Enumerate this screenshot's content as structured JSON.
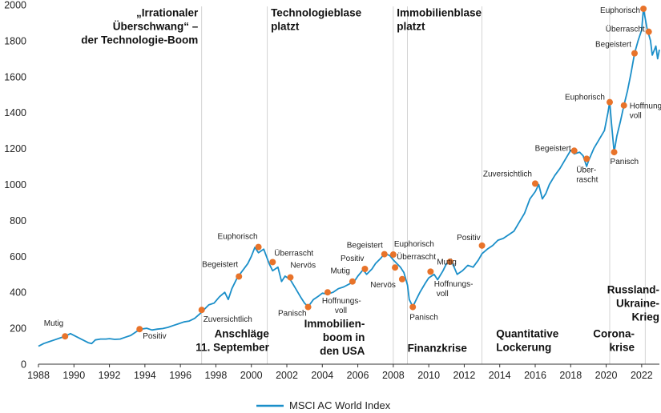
{
  "chart_data": {
    "type": "line",
    "xlim": [
      1988,
      2023
    ],
    "ylim": [
      0,
      2000
    ],
    "x_ticks": [
      1988,
      1990,
      1992,
      1994,
      1996,
      1998,
      2000,
      2002,
      2004,
      2006,
      2008,
      2010,
      2012,
      2014,
      2016,
      2018,
      2020,
      2022
    ],
    "y_ticks": [
      0,
      200,
      400,
      600,
      800,
      1000,
      1200,
      1400,
      1600,
      1800,
      2000
    ],
    "series": [
      {
        "name": "MSCI AC World Index",
        "color": "#1b8fc9",
        "points": [
          [
            1988.0,
            100
          ],
          [
            1988.3,
            115
          ],
          [
            1988.6,
            125
          ],
          [
            1988.9,
            135
          ],
          [
            1989.2,
            145
          ],
          [
            1989.5,
            155
          ],
          [
            1989.8,
            170
          ],
          [
            1990.0,
            160
          ],
          [
            1990.2,
            150
          ],
          [
            1990.4,
            140
          ],
          [
            1990.6,
            130
          ],
          [
            1990.8,
            120
          ],
          [
            1991.0,
            115
          ],
          [
            1991.2,
            135
          ],
          [
            1991.5,
            140
          ],
          [
            1991.8,
            140
          ],
          [
            1992.0,
            142
          ],
          [
            1992.3,
            138
          ],
          [
            1992.6,
            140
          ],
          [
            1992.9,
            150
          ],
          [
            1993.2,
            160
          ],
          [
            1993.5,
            180
          ],
          [
            1993.8,
            195
          ],
          [
            1994.1,
            200
          ],
          [
            1994.4,
            190
          ],
          [
            1994.7,
            195
          ],
          [
            1995.0,
            198
          ],
          [
            1995.3,
            205
          ],
          [
            1995.6,
            215
          ],
          [
            1995.9,
            225
          ],
          [
            1996.2,
            235
          ],
          [
            1996.5,
            240
          ],
          [
            1996.8,
            255
          ],
          [
            1997.1,
            280
          ],
          [
            1997.3,
            300
          ],
          [
            1997.6,
            330
          ],
          [
            1997.9,
            340
          ],
          [
            1998.2,
            375
          ],
          [
            1998.5,
            400
          ],
          [
            1998.7,
            360
          ],
          [
            1998.9,
            420
          ],
          [
            1999.2,
            480
          ],
          [
            1999.5,
            520
          ],
          [
            1999.8,
            560
          ],
          [
            2000.0,
            600
          ],
          [
            2000.2,
            650
          ],
          [
            2000.4,
            620
          ],
          [
            2000.7,
            640
          ],
          [
            2001.0,
            560
          ],
          [
            2001.2,
            520
          ],
          [
            2001.5,
            540
          ],
          [
            2001.7,
            460
          ],
          [
            2001.9,
            490
          ],
          [
            2002.2,
            470
          ],
          [
            2002.5,
            420
          ],
          [
            2002.8,
            370
          ],
          [
            2003.0,
            340
          ],
          [
            2003.2,
            320
          ],
          [
            2003.5,
            360
          ],
          [
            2003.8,
            380
          ],
          [
            2004.0,
            395
          ],
          [
            2004.3,
            390
          ],
          [
            2004.6,
            400
          ],
          [
            2004.9,
            420
          ],
          [
            2005.2,
            430
          ],
          [
            2005.5,
            445
          ],
          [
            2005.8,
            460
          ],
          [
            2006.0,
            490
          ],
          [
            2006.3,
            525
          ],
          [
            2006.5,
            500
          ],
          [
            2006.8,
            530
          ],
          [
            2007.0,
            560
          ],
          [
            2007.3,
            590
          ],
          [
            2007.5,
            615
          ],
          [
            2007.8,
            605
          ],
          [
            2008.0,
            580
          ],
          [
            2008.2,
            560
          ],
          [
            2008.4,
            540
          ],
          [
            2008.6,
            510
          ],
          [
            2008.8,
            440
          ],
          [
            2008.9,
            360
          ],
          [
            2009.1,
            320
          ],
          [
            2009.3,
            360
          ],
          [
            2009.5,
            400
          ],
          [
            2009.8,
            450
          ],
          [
            2010.0,
            480
          ],
          [
            2010.3,
            500
          ],
          [
            2010.5,
            470
          ],
          [
            2010.8,
            520
          ],
          [
            2011.0,
            560
          ],
          [
            2011.3,
            570
          ],
          [
            2011.6,
            500
          ],
          [
            2011.9,
            520
          ],
          [
            2012.2,
            550
          ],
          [
            2012.5,
            540
          ],
          [
            2012.8,
            580
          ],
          [
            2013.0,
            615
          ],
          [
            2013.3,
            640
          ],
          [
            2013.6,
            660
          ],
          [
            2013.9,
            690
          ],
          [
            2014.2,
            700
          ],
          [
            2014.5,
            720
          ],
          [
            2014.8,
            740
          ],
          [
            2015.1,
            790
          ],
          [
            2015.4,
            840
          ],
          [
            2015.7,
            920
          ],
          [
            2016.0,
            960
          ],
          [
            2016.2,
            1000
          ],
          [
            2016.4,
            920
          ],
          [
            2016.6,
            950
          ],
          [
            2016.8,
            1000
          ],
          [
            2017.1,
            1050
          ],
          [
            2017.4,
            1090
          ],
          [
            2017.7,
            1140
          ],
          [
            2018.0,
            1190
          ],
          [
            2018.2,
            1170
          ],
          [
            2018.5,
            1180
          ],
          [
            2018.7,
            1160
          ],
          [
            2018.9,
            1100
          ],
          [
            2019.0,
            1130
          ],
          [
            2019.3,
            1200
          ],
          [
            2019.6,
            1250
          ],
          [
            2019.9,
            1300
          ],
          [
            2020.1,
            1400
          ],
          [
            2020.2,
            1460
          ],
          [
            2020.3,
            1340
          ],
          [
            2020.45,
            1180
          ],
          [
            2020.6,
            1270
          ],
          [
            2020.8,
            1350
          ],
          [
            2021.0,
            1440
          ],
          [
            2021.2,
            1520
          ],
          [
            2021.4,
            1620
          ],
          [
            2021.6,
            1730
          ],
          [
            2021.8,
            1800
          ],
          [
            2022.0,
            1860
          ],
          [
            2022.1,
            1980
          ],
          [
            2022.3,
            1870
          ],
          [
            2022.5,
            1800
          ],
          [
            2022.6,
            1720
          ],
          [
            2022.8,
            1770
          ],
          [
            2022.9,
            1700
          ],
          [
            2023.0,
            1750
          ]
        ]
      }
    ],
    "annotations": [
      {
        "label": "Mutig",
        "x": 1989.5,
        "y": 155,
        "anchor": "end",
        "dx": -2,
        "dy": -13
      },
      {
        "label": "Positiv",
        "x": 1993.7,
        "y": 195,
        "anchor": "start",
        "dx": 4,
        "dy": 12
      },
      {
        "label": "Zuversichtlich",
        "x": 1997.2,
        "y": 302,
        "anchor": "start",
        "dx": 2,
        "dy": 15
      },
      {
        "label": "Begeistert",
        "x": 1999.3,
        "y": 488,
        "anchor": "end",
        "dx": -1,
        "dy": -12
      },
      {
        "label": "Euphorisch",
        "x": 2000.4,
        "y": 652,
        "anchor": "end",
        "dx": -1,
        "dy": -10
      },
      {
        "label": "Überrascht",
        "x": 2001.2,
        "y": 568,
        "anchor": "start",
        "dx": 2,
        "dy": -8
      },
      {
        "label": "Nervös",
        "x": 2002.2,
        "y": 483,
        "anchor": "start",
        "dx": 0,
        "dy": -12
      },
      {
        "label": "Panisch",
        "x": 2003.2,
        "y": 318,
        "anchor": "end",
        "dx": -2,
        "dy": 11
      },
      {
        "label": "Hoffnungs-",
        "x": 2004.3,
        "y": 400,
        "anchor": "start",
        "dx": -7,
        "dy": 14
      },
      {
        "label": "voll",
        "x": 2004.3,
        "y": 400,
        "anchor": "start",
        "dx": 9,
        "dy": 26
      },
      {
        "label": "Mutig",
        "x": 2005.7,
        "y": 460,
        "anchor": "end",
        "dx": -3,
        "dy": -10
      },
      {
        "label": "Positiv",
        "x": 2006.4,
        "y": 530,
        "anchor": "end",
        "dx": -1,
        "dy": -10
      },
      {
        "label": "Begeistert",
        "x": 2007.5,
        "y": 612,
        "anchor": "end",
        "dx": -2,
        "dy": -8
      },
      {
        "label": "Euphorisch",
        "x": 2008.0,
        "y": 610,
        "anchor": "start",
        "dx": 1,
        "dy": -10
      },
      {
        "label": "Überrascht",
        "x": 2008.1,
        "y": 538,
        "anchor": "start",
        "dx": 2,
        "dy": -10
      },
      {
        "label": "Nervös",
        "x": 2008.5,
        "y": 473,
        "anchor": "end",
        "dx": -8,
        "dy": 10
      },
      {
        "label": "Panisch",
        "x": 2009.1,
        "y": 318,
        "anchor": "start",
        "dx": -4,
        "dy": 16
      },
      {
        "label": "Mutig",
        "x": 2010.1,
        "y": 515,
        "anchor": "start",
        "dx": 8,
        "dy": -9
      },
      {
        "label": "Hoffnungs-",
        "x": 2011.2,
        "y": 570,
        "anchor": "start",
        "dx": -20,
        "dy": 31
      },
      {
        "label": "voll",
        "x": 2011.2,
        "y": 570,
        "anchor": "start",
        "dx": -17,
        "dy": 43
      },
      {
        "label": "Positiv",
        "x": 2013.0,
        "y": 660,
        "anchor": "end",
        "dx": -2,
        "dy": -7
      },
      {
        "label": "Zuversichtlich",
        "x": 2016.0,
        "y": 1005,
        "anchor": "end",
        "dx": -4,
        "dy": -9
      },
      {
        "label": "Begeistert",
        "x": 2018.2,
        "y": 1188,
        "anchor": "end",
        "dx": -4,
        "dy": 0
      },
      {
        "label": "Über-",
        "x": 2018.9,
        "y": 1143,
        "anchor": "start",
        "dx": -13,
        "dy": 17
      },
      {
        "label": "rascht",
        "x": 2018.9,
        "y": 1143,
        "anchor": "start",
        "dx": -13,
        "dy": 29
      },
      {
        "label": "Euphorisch",
        "x": 2020.2,
        "y": 1458,
        "anchor": "end",
        "dx": -6,
        "dy": -3
      },
      {
        "label": "Panisch",
        "x": 2020.45,
        "y": 1180,
        "anchor": "start",
        "dx": -5,
        "dy": 15
      },
      {
        "label": "Hoffnungs-",
        "x": 2021.0,
        "y": 1440,
        "anchor": "start",
        "dx": 7,
        "dy": 4
      },
      {
        "label": "voll",
        "x": 2021.0,
        "y": 1440,
        "anchor": "start",
        "dx": 7,
        "dy": 16
      },
      {
        "label": "Euphorisch",
        "x": 2022.1,
        "y": 1978,
        "anchor": "end",
        "dx": -4,
        "dy": 5
      },
      {
        "label": "Überrascht",
        "x": 2022.4,
        "y": 1850,
        "anchor": "end",
        "dx": -5,
        "dy": 0
      },
      {
        "label": "Begeistert",
        "x": 2021.6,
        "y": 1730,
        "anchor": "end",
        "dx": -4,
        "dy": -8
      }
    ],
    "event_lines": [
      1997.2,
      2000.9,
      2008.0,
      2008.8,
      2013.0,
      2020.2,
      2022.2
    ],
    "event_labels": [
      {
        "lines": [
          "„Irrationaler",
          "Überschwang“ –",
          "der Technologie-Boom"
        ],
        "x": 1997.0,
        "y_top": 1935,
        "anchor": "end"
      },
      {
        "lines": [
          "Technologieblase",
          "platzt"
        ],
        "x": 2001.1,
        "y_top": 1935,
        "anchor": "start"
      },
      {
        "lines": [
          "Immobilienblase",
          "platzt"
        ],
        "x": 2008.2,
        "y_top": 1935,
        "anchor": "start"
      },
      {
        "lines": [
          "Anschläge",
          "11. September"
        ],
        "x": 2001.0,
        "y_top": 150,
        "anchor": "end"
      },
      {
        "lines": [
          "Immobilien-",
          "boom in",
          "den USA"
        ],
        "x": 2006.4,
        "y_top": 205,
        "anchor": "end"
      },
      {
        "lines": [
          "Finanzkrise"
        ],
        "x": 2008.8,
        "y_top": 70,
        "anchor": "start"
      },
      {
        "lines": [
          "Quantitative",
          "Lockerung"
        ],
        "x": 2013.8,
        "y_top": 150,
        "anchor": "start"
      },
      {
        "lines": [
          "Corona-",
          "krise"
        ],
        "x": 2021.6,
        "y_top": 150,
        "anchor": "end"
      },
      {
        "lines": [
          "Russland-",
          "Ukraine-",
          "Krieg"
        ],
        "x": 2023.0,
        "y_top": 395,
        "anchor": "end"
      }
    ],
    "marker_color": "#e8732a",
    "legend": "MSCI AC World Index"
  }
}
